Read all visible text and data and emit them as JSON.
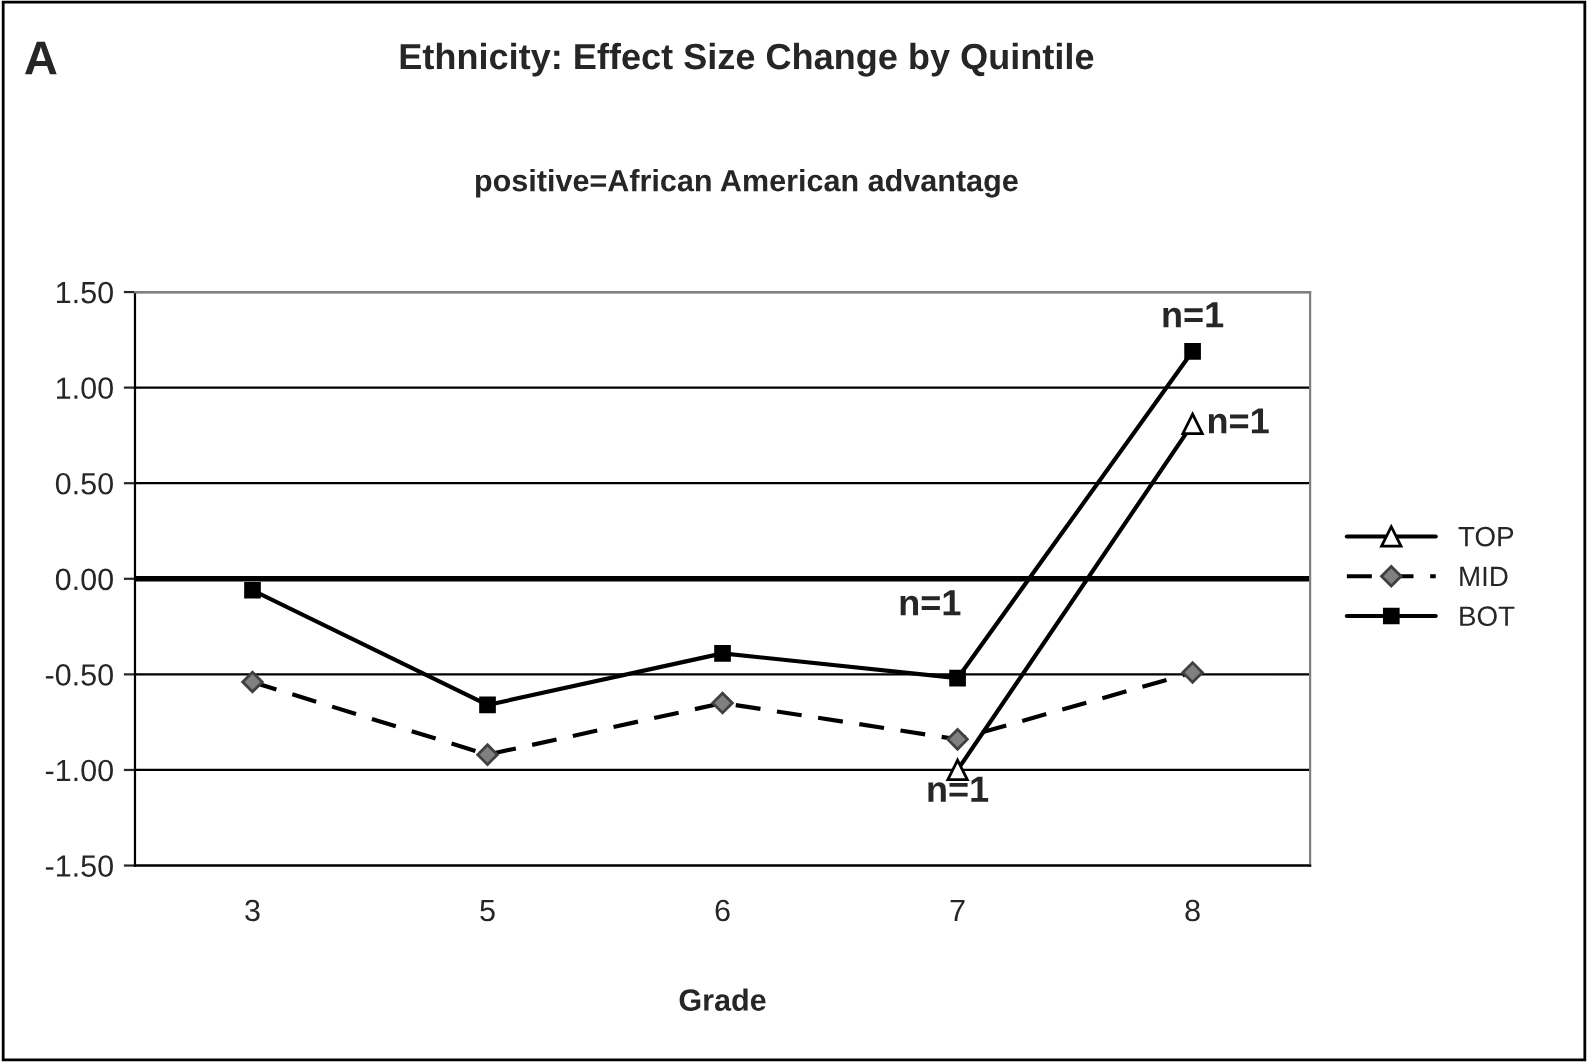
{
  "chart_data": {
    "type": "line",
    "title": "Ethnicity: Effect Size Change by Quintile",
    "subtitle": "positive=African American advantage",
    "xlabel": "Grade",
    "categories": [
      "3",
      "5",
      "6",
      "7",
      "8"
    ],
    "series": [
      {
        "name": "TOP",
        "color": "#000000",
        "marker": "triangle",
        "line_style": "solid",
        "values": [
          null,
          null,
          null,
          -1.0,
          0.81
        ]
      },
      {
        "name": "MID",
        "color": "#808080",
        "marker": "diamond",
        "line_style": "dashed",
        "values": [
          -0.54,
          -0.92,
          -0.65,
          -0.84,
          -0.49
        ]
      },
      {
        "name": "BOT",
        "color": "#000000",
        "marker": "square",
        "line_style": "solid",
        "values": [
          -0.06,
          -0.66,
          -0.39,
          -0.52,
          1.19
        ]
      }
    ],
    "ylim": [
      -1.5,
      1.5
    ],
    "yticks": [
      {
        "value": -1.5,
        "label": "-1.50"
      },
      {
        "value": -1.0,
        "label": "-1.00"
      },
      {
        "value": -0.5,
        "label": "-0.50"
      },
      {
        "value": 0,
        "label": "0.00"
      },
      {
        "value": 0.5,
        "label": "0.50"
      },
      {
        "value": 1.0,
        "label": "1.00"
      },
      {
        "value": 1.5,
        "label": "1.50"
      }
    ],
    "grid": "y",
    "legend": "right",
    "ref_lines": [
      {
        "axis": "y",
        "value": 0,
        "color": "#000000"
      }
    ],
    "annotations": [
      "A",
      {
        "text": "n=1",
        "x": "8",
        "y": 1.19
      },
      {
        "text": "n=1",
        "x": "8",
        "y": 0.81
      },
      {
        "text": "n=1",
        "x": "7",
        "y": -0.52
      },
      {
        "text": "n=1",
        "x": "7",
        "y": -1.0
      }
    ]
  }
}
